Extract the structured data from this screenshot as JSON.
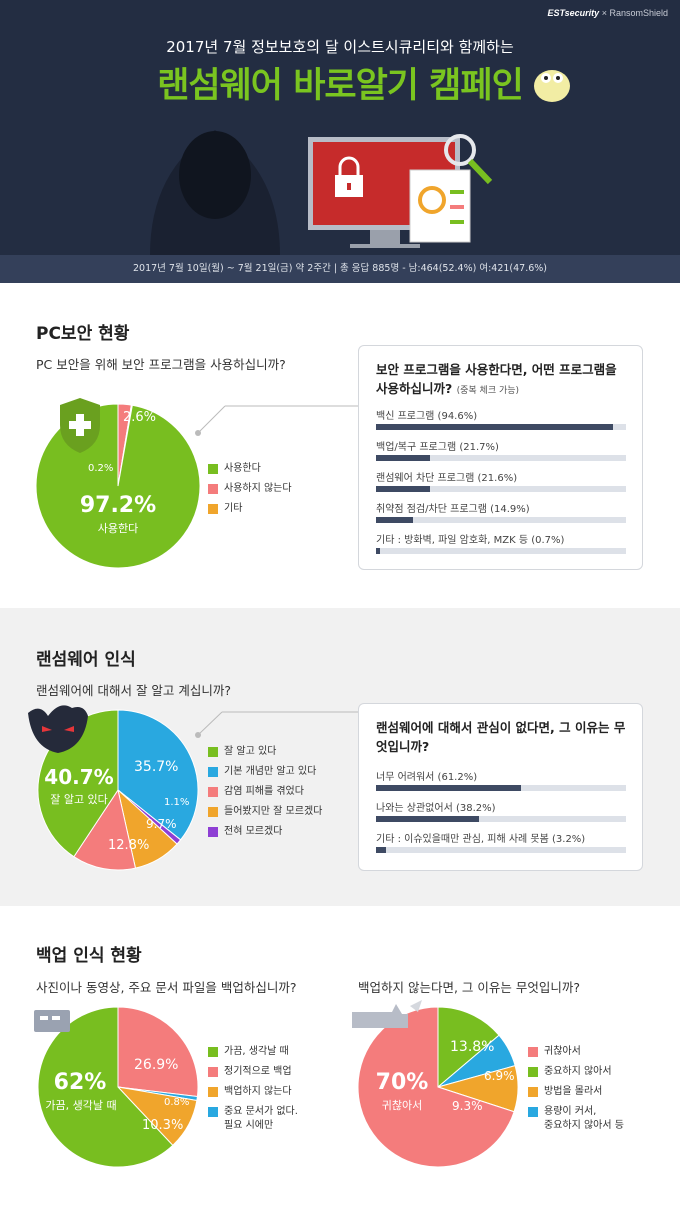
{
  "header": {
    "brand": "ESTsecurity",
    "brand_x": "×",
    "brand_partner": "RansomShield",
    "subtitle": "2017년 7월 정보보호의 달 이스트시큐리티와 함께하는",
    "title": "랜섬웨어 바로알기 캠페인",
    "info": "2017년 7월 10일(월) ~ 7월 21일(금) 약 2주간 | 총 응답 885명 - 남:464(52.4%) 여:421(47.6%)"
  },
  "colors": {
    "green": "#78be20",
    "pink": "#f47c7c",
    "orange": "#f0a52c",
    "blue": "#29a8e0",
    "purple": "#8e3fd4",
    "navy": "#3e4a63"
  },
  "icons": [
    "shield-plus-icon",
    "ransom-mask-icon",
    "usb-drive-icon",
    "broken-drive-icon",
    "lock-icon",
    "magnifier-icon",
    "mascot-icon"
  ],
  "sections": {
    "pc": {
      "heading": "PC보안 현황",
      "question": "PC 보안을 위해 보안 프로그램을 사용하십니까?",
      "labels": {
        "main_pct": "97.2%",
        "main_name": "사용한다",
        "p2": "2.6%",
        "p3": "0.2%"
      },
      "legend": [
        "사용한다",
        "사용하지 않는다",
        "기타"
      ],
      "card_title": "보안 프로그램을 사용한다면, 어떤 프로그램을 사용하십니까?",
      "card_note": "(중복 체크 가능)",
      "bars": [
        {
          "label": "백신 프로그램 (94.6%)",
          "value": 94.6
        },
        {
          "label": "백업/복구 프로그램 (21.7%)",
          "value": 21.7
        },
        {
          "label": "랜섬웨어 차단 프로그램 (21.6%)",
          "value": 21.6
        },
        {
          "label": "취약점 점검/차단 프로그램 (14.9%)",
          "value": 14.9
        },
        {
          "label": "기타 : 방화벽, 파일 암호화, MZK 등 (0.7%)",
          "value": 0.7
        }
      ]
    },
    "aware": {
      "heading": "랜섬웨어 인식",
      "question": "랜섬웨어에 대해서 잘 알고 계십니까?",
      "labels": {
        "main_pct": "40.7%",
        "main_name": "잘 알고 있다",
        "p2": "35.7%",
        "p3": "1.1%",
        "p4": "9.7%",
        "p5": "12.8%"
      },
      "legend": [
        "잘 알고 있다",
        "기본 개념만 알고 있다",
        "감염 피해를 겪었다",
        "들어봤지만 잘 모르겠다",
        "전혀 모르겠다"
      ],
      "card_title": "랜섬웨어에 대해서 관심이 없다면, 그 이유는 무엇입니까?",
      "bars": [
        {
          "label": "너무 어려워서 (61.2%)",
          "value": 61.2
        },
        {
          "label": "나와는 상관없어서 (38.2%)",
          "value": 38.2
        },
        {
          "label": "기타 : 이슈있을때만 관심, 피해 사례 못봄 (3.2%)",
          "value": 3.2
        }
      ]
    },
    "backup": {
      "heading": "백업 인식 현황",
      "question": "사진이나 동영상, 주요 문서 파일을 백업하십니까?",
      "labels": {
        "main_pct": "62%",
        "main_name": "가끔, 생각날 때",
        "p2": "26.9%",
        "p3": "0.8%",
        "p4": "10.3%"
      },
      "legend": [
        "가끔, 생각날 때",
        "정기적으로 백업",
        "백업하지 않는다",
        "중요 문서가 없다.",
        "필요 시에만"
      ],
      "question2": "백업하지 않는다면, 그 이유는 무엇입니까?",
      "labels2": {
        "main_pct": "70%",
        "main_name": "귀찮아서",
        "p2": "13.8%",
        "p3": "6.9%",
        "p4": "9.3%"
      },
      "legend2": [
        "귀찮아서",
        "중요하지 않아서",
        "방법을 몰라서",
        "용량이 커서,",
        "중요하지 않아서 등"
      ]
    }
  },
  "chart_data": [
    {
      "type": "pie",
      "title": "PC 보안을 위해 보안 프로그램을 사용하십니까?",
      "categories": [
        "사용한다",
        "사용하지 않는다",
        "기타"
      ],
      "values": [
        97.2,
        2.6,
        0.2
      ]
    },
    {
      "type": "bar",
      "title": "보안 프로그램을 사용한다면, 어떤 프로그램을 사용하십니까?",
      "categories": [
        "백신 프로그램",
        "백업/복구 프로그램",
        "랜섬웨어 차단 프로그램",
        "취약점 점검/차단 프로그램",
        "기타 : 방화벽, 파일 암호화, MZK 등"
      ],
      "values": [
        94.6,
        21.7,
        21.6,
        14.9,
        0.7
      ]
    },
    {
      "type": "pie",
      "title": "랜섬웨어에 대해서 잘 알고 계십니까?",
      "categories": [
        "잘 알고 있다",
        "기본 개념만 알고 있다",
        "감염 피해를 겪었다",
        "들어봤지만 잘 모르겠다",
        "전혀 모르겠다"
      ],
      "values": [
        40.7,
        35.7,
        12.8,
        9.7,
        1.1
      ]
    },
    {
      "type": "bar",
      "title": "랜섬웨어에 대해서 관심이 없다면, 그 이유는 무엇입니까?",
      "categories": [
        "너무 어려워서",
        "나와는 상관없어서",
        "기타 : 이슈있을때만 관심, 피해 사례 못봄"
      ],
      "values": [
        61.2,
        38.2,
        3.2
      ]
    },
    {
      "type": "pie",
      "title": "사진이나 동영상, 주요 문서 파일을 백업하십니까?",
      "categories": [
        "가끔, 생각날 때",
        "정기적으로 백업",
        "백업하지 않는다",
        "중요 문서가 없다. 필요 시에만"
      ],
      "values": [
        62,
        26.9,
        10.3,
        0.8
      ]
    },
    {
      "type": "pie",
      "title": "백업하지 않는다면, 그 이유는 무엇입니까?",
      "categories": [
        "귀찮아서",
        "중요하지 않아서",
        "방법을 몰라서",
        "용량이 커서, 중요하지 않아서 등"
      ],
      "values": [
        70,
        13.8,
        9.3,
        6.9
      ]
    }
  ]
}
